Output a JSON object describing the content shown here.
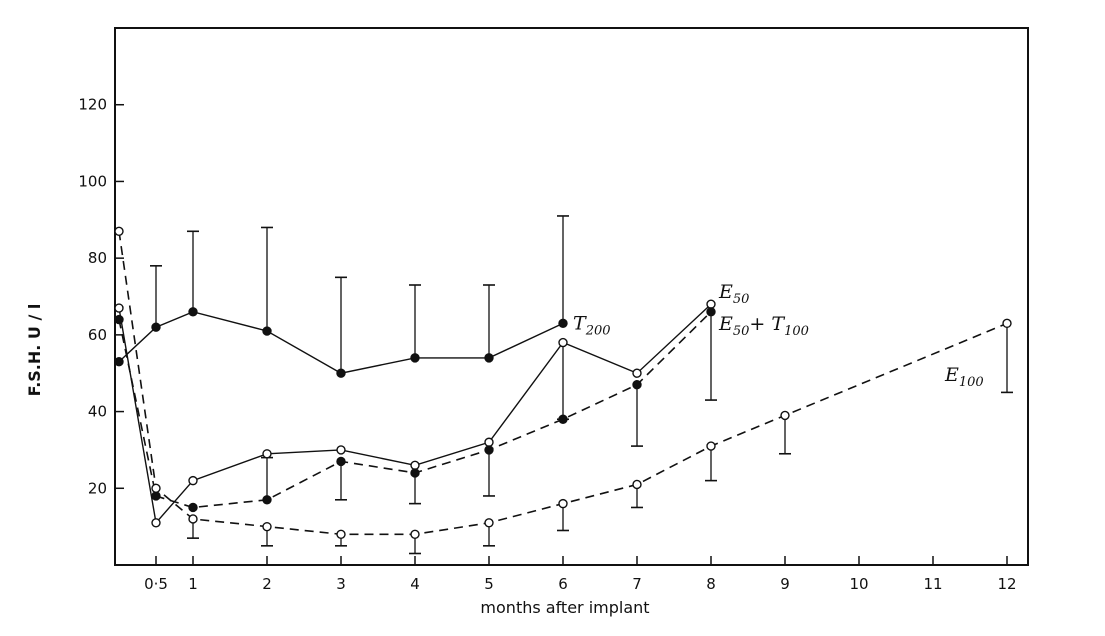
{
  "chart_data": {
    "type": "line",
    "title": "",
    "xlabel": "months after implant",
    "ylabel": "F.S.H. U / l",
    "x_ticks": [
      {
        "value": 0.5,
        "label": "0·5"
      },
      {
        "value": 1,
        "label": "1"
      },
      {
        "value": 2,
        "label": "2"
      },
      {
        "value": 3,
        "label": "3"
      },
      {
        "value": 4,
        "label": "4"
      },
      {
        "value": 5,
        "label": "5"
      },
      {
        "value": 6,
        "label": "6"
      },
      {
        "value": 7,
        "label": "7"
      },
      {
        "value": 8,
        "label": "8"
      },
      {
        "value": 9,
        "label": "9"
      },
      {
        "value": 10,
        "label": "10"
      },
      {
        "value": 11,
        "label": "11"
      },
      {
        "value": 12,
        "label": "12"
      }
    ],
    "y_ticks": [
      {
        "value": 20,
        "label": "20"
      },
      {
        "value": 40,
        "label": "40"
      },
      {
        "value": 60,
        "label": "60"
      },
      {
        "value": 80,
        "label": "80"
      },
      {
        "value": 100,
        "label": "100"
      },
      {
        "value": 120,
        "label": "120"
      }
    ],
    "xlim": [
      -0.25,
      12.5
    ],
    "ylim": [
      0,
      140
    ],
    "grid": false,
    "series": [
      {
        "name": "T200",
        "label_main": "T",
        "label_sub": "200",
        "marker": "filled",
        "line": "solid",
        "points": [
          {
            "x": 0,
            "y": 53
          },
          {
            "x": 0.5,
            "y": 62,
            "err": 78
          },
          {
            "x": 1,
            "y": 66,
            "err": 87
          },
          {
            "x": 2,
            "y": 61,
            "err": 88
          },
          {
            "x": 3,
            "y": 50,
            "err": 75
          },
          {
            "x": 4,
            "y": 54,
            "err": 73
          },
          {
            "x": 5,
            "y": 54,
            "err": 73
          },
          {
            "x": 6,
            "y": 63,
            "err": 91
          }
        ]
      },
      {
        "name": "E50",
        "label_main": "E",
        "label_sub": "50",
        "marker": "open",
        "line": "solid",
        "points": [
          {
            "x": 0,
            "y": 67
          },
          {
            "x": 0.5,
            "y": 11
          },
          {
            "x": 1,
            "y": 22
          },
          {
            "x": 2,
            "y": 29
          },
          {
            "x": 3,
            "y": 30
          },
          {
            "x": 4,
            "y": 26
          },
          {
            "x": 5,
            "y": 32
          },
          {
            "x": 6,
            "y": 58,
            "err": 38
          },
          {
            "x": 7,
            "y": 50
          },
          {
            "x": 8,
            "y": 68
          }
        ]
      },
      {
        "name": "E50+T100",
        "label_main": "E",
        "label_sub": "50",
        "label_mid": "+ T",
        "label_sub2": "100",
        "marker": "filled",
        "line": "dashed",
        "points": [
          {
            "x": 0,
            "y": 64
          },
          {
            "x": 0.5,
            "y": 18
          },
          {
            "x": 1,
            "y": 15
          },
          {
            "x": 2,
            "y": 17,
            "err": 28
          },
          {
            "x": 3,
            "y": 27,
            "err": 17
          },
          {
            "x": 4,
            "y": 24,
            "err": 16
          },
          {
            "x": 5,
            "y": 30,
            "err": 18
          },
          {
            "x": 6,
            "y": 38
          },
          {
            "x": 7,
            "y": 47,
            "err": 31
          },
          {
            "x": 8,
            "y": 66,
            "err": 43
          }
        ]
      },
      {
        "name": "E100",
        "label_main": "E",
        "label_sub": "100",
        "marker": "open",
        "line": "dashed",
        "points": [
          {
            "x": 0,
            "y": 87
          },
          {
            "x": 0.5,
            "y": 20
          },
          {
            "x": 1,
            "y": 12,
            "err": 7
          },
          {
            "x": 2,
            "y": 10,
            "err": 5
          },
          {
            "x": 3,
            "y": 8,
            "err": 5
          },
          {
            "x": 4,
            "y": 8,
            "err": 3
          },
          {
            "x": 5,
            "y": 11,
            "err": 5
          },
          {
            "x": 6,
            "y": 16,
            "err": 9
          },
          {
            "x": 7,
            "y": 21,
            "err": 15
          },
          {
            "x": 8,
            "y": 31,
            "err": 22
          },
          {
            "x": 9,
            "y": 39,
            "err": 29
          },
          {
            "x": 12,
            "y": 63,
            "err": 45
          }
        ]
      }
    ]
  }
}
